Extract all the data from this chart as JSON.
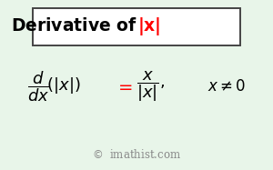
{
  "background_color": "#e8f5e9",
  "title_box_color": "#ffffff",
  "title_box_edgecolor": "#444444",
  "fig_width": 3.0,
  "fig_height": 1.87,
  "dpi": 100,
  "title_black": "Derivative of ",
  "title_red": "|x|",
  "title_fontsize": 13.5,
  "formula_fontsize": 13,
  "condition_fontsize": 12,
  "watermark_fontsize": 8.5,
  "watermark_color": "#888888"
}
